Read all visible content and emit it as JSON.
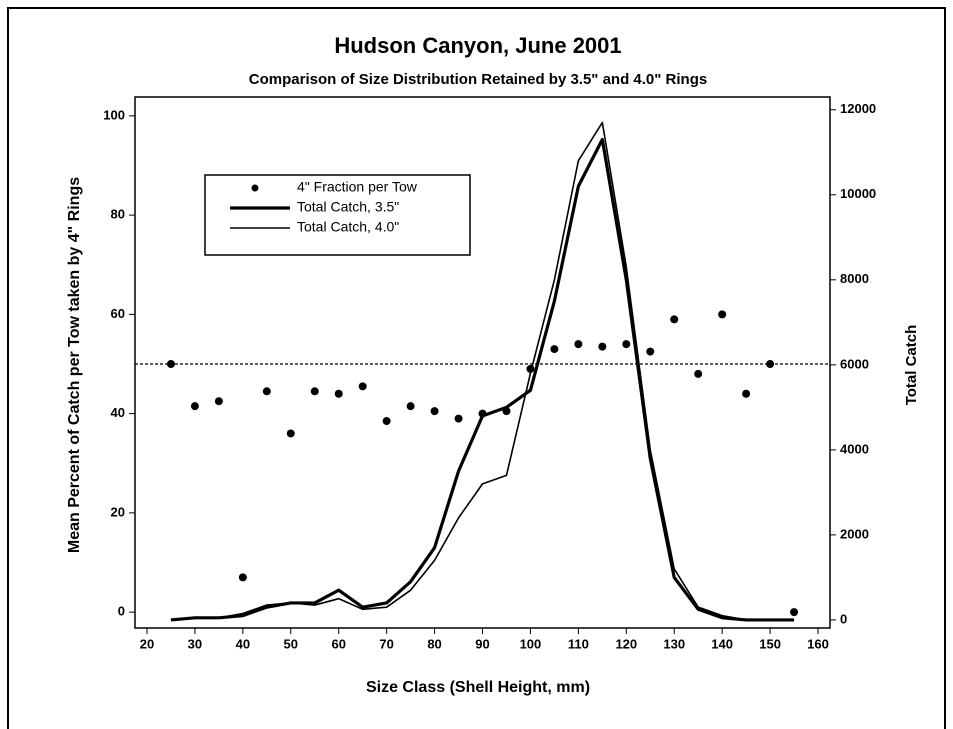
{
  "chart_data": {
    "type": "line",
    "title": "Hudson Canyon, June 2001",
    "subtitle": "Comparison of Size Distribution Retained by 3.5\" and 4.0\" Rings",
    "x_label": "Size Class (Shell Height, mm)",
    "y_label": "Mean Percent of Catch per Tow taken by 4\" Rings",
    "y2_label": "Total Catch",
    "x": [
      25,
      30,
      35,
      40,
      45,
      50,
      55,
      60,
      65,
      70,
      75,
      80,
      85,
      90,
      95,
      100,
      105,
      110,
      115,
      120,
      125,
      130,
      135,
      140,
      145,
      150,
      155
    ],
    "series": [
      {
        "name": "4\" Fraction per Tow",
        "type": "scatter",
        "color": "#000000",
        "axis": "y",
        "values": [
          50,
          41.5,
          42.5,
          7,
          44.5,
          36,
          44.5,
          44,
          45.5,
          38.5,
          41.5,
          40.5,
          39,
          40,
          40.5,
          49,
          53,
          54,
          53.5,
          54,
          52.5,
          59,
          48,
          60,
          44,
          50,
          0
        ]
      },
      {
        "name": "Total Catch, 3.5\"",
        "type": "line",
        "color": "#000000",
        "width": 3.2,
        "axis": "y2",
        "values": [
          0,
          50,
          50,
          100,
          300,
          400,
          400,
          700,
          300,
          400,
          900,
          1700,
          3500,
          4800,
          5000,
          5400,
          7500,
          10200,
          11300,
          8000,
          3800,
          1000,
          250,
          50,
          0,
          0,
          0
        ]
      },
      {
        "name": "Total Catch, 4.0\"",
        "type": "line",
        "color": "#000000",
        "width": 1.6,
        "axis": "y2",
        "values": [
          0,
          50,
          50,
          150,
          350,
          400,
          350,
          500,
          250,
          300,
          700,
          1400,
          2400,
          3200,
          3400,
          5800,
          8000,
          10800,
          11700,
          8300,
          4000,
          1200,
          300,
          100,
          0,
          0,
          0
        ]
      }
    ],
    "hline": 50,
    "xlim": [
      17.5,
      162.5
    ],
    "ylim": [
      -3.2,
      103.8
    ],
    "y2lim": [
      -190,
      12300
    ],
    "xticks": [
      20,
      30,
      40,
      50,
      60,
      70,
      80,
      90,
      100,
      110,
      120,
      130,
      140,
      150,
      160
    ],
    "yticks": [
      0,
      20,
      40,
      60,
      80,
      100
    ],
    "y2ticks": [
      0,
      2000,
      4000,
      6000,
      8000,
      10000,
      12000
    ],
    "legend": "upper left"
  }
}
